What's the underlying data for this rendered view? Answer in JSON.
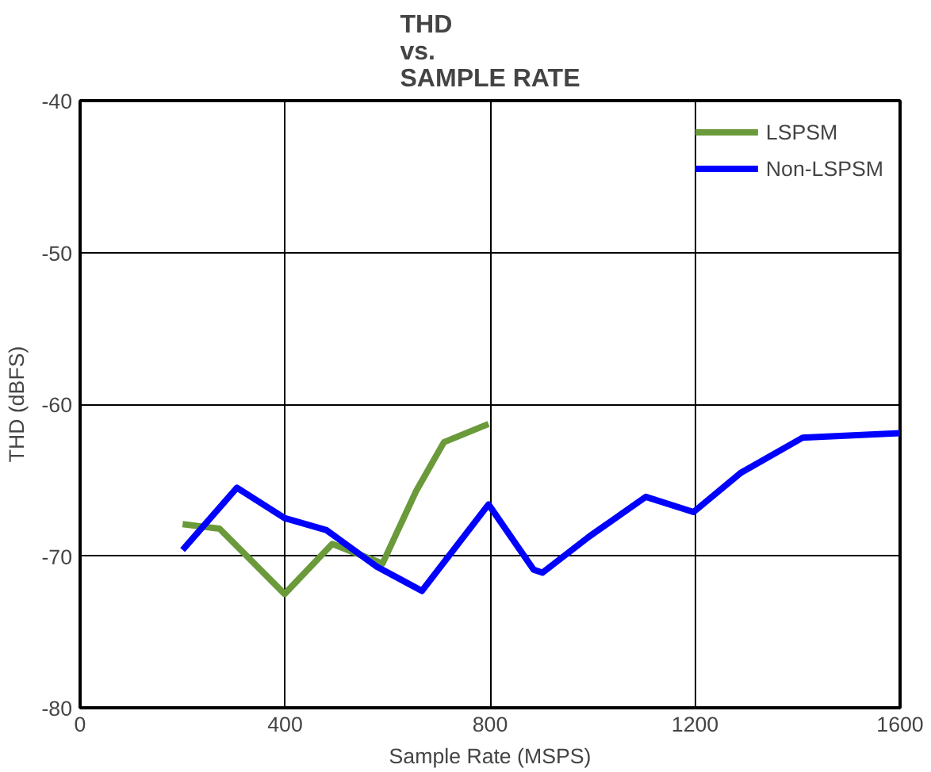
{
  "chart_data": {
    "type": "line",
    "title": "THD\nvs.\nSAMPLE RATE",
    "xlabel": "Sample Rate (MSPS)",
    "ylabel": "THD (dBFS)",
    "xlim": [
      0,
      1600
    ],
    "xticks": [
      0,
      400,
      800,
      1200,
      1600
    ],
    "ylim": [
      -80,
      -40
    ],
    "yticks": [
      -80,
      -70,
      -60,
      -50,
      -40
    ],
    "grid": true,
    "legend": "top right",
    "marker": "none",
    "line_style": "solid",
    "series": [
      {
        "name": "LSPSM",
        "color": "#6a9a3a",
        "x": [
          200,
          272,
          399,
          492,
          590,
          656,
          710,
          797
        ],
        "values": [
          -67.9,
          -68.2,
          -72.5,
          -69.2,
          -70.5,
          -65.7,
          -62.5,
          -61.3
        ]
      },
      {
        "name": "Non-LSPSM",
        "color": "#0000ff",
        "x": [
          200,
          306,
          399,
          481,
          579,
          667,
          797,
          885,
          902,
          994,
          1104,
          1197,
          1290,
          1410,
          1600
        ],
        "values": [
          -69.6,
          -65.5,
          -67.5,
          -68.3,
          -70.7,
          -72.3,
          -66.6,
          -70.9,
          -71.1,
          -68.7,
          -66.1,
          -67.1,
          -64.5,
          -62.2,
          -61.9
        ]
      }
    ]
  }
}
